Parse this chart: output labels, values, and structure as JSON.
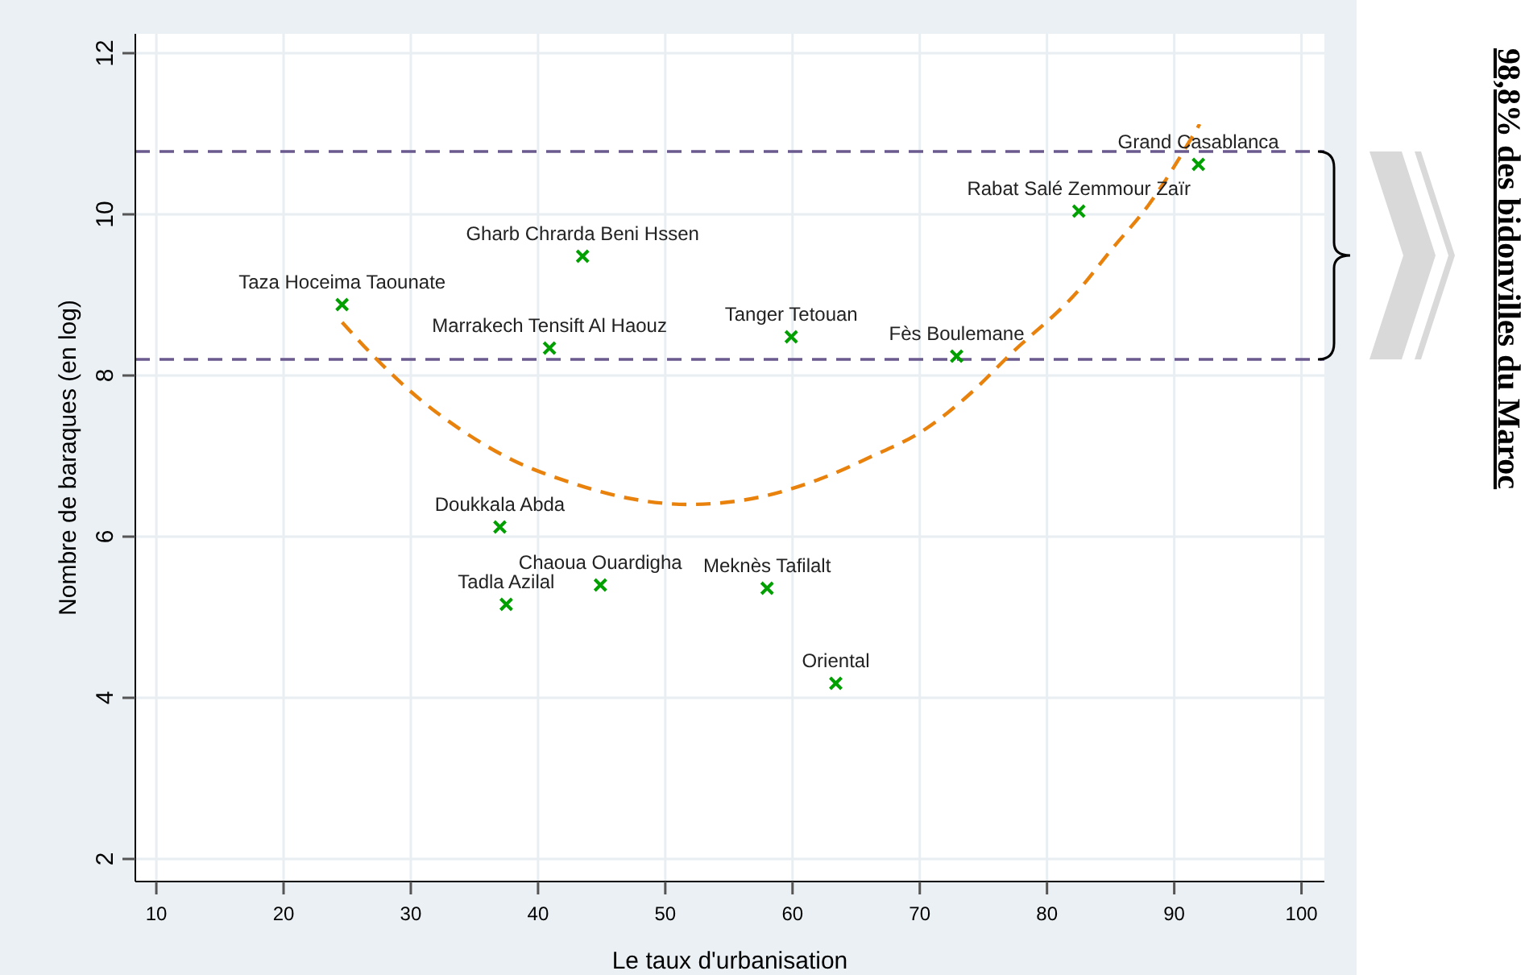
{
  "chart_data": {
    "type": "scatter",
    "xlabel": "Le taux d'urbanisation",
    "ylabel": "Nombre de baraques (en log)",
    "xlim": [
      8.35,
      101.8
    ],
    "ylim": [
      1.72,
      12.24
    ],
    "xticks": [
      10,
      20,
      30,
      40,
      50,
      60,
      70,
      80,
      90,
      100
    ],
    "yticks": [
      2,
      4,
      6,
      8,
      10,
      12
    ],
    "grid": true,
    "series": [
      {
        "marker": "cross",
        "color": "#00a000",
        "x": [
          24.6,
          43.5,
          40.9,
          59.9,
          72.9,
          82.5,
          91.9,
          37.0,
          37.5,
          44.9,
          58.0,
          63.4
        ],
        "values": [
          8.88,
          9.48,
          8.34,
          8.48,
          8.24,
          10.04,
          10.62,
          6.12,
          5.16,
          5.4,
          5.36,
          4.18
        ]
      },
      {
        "type": "line",
        "line_style": "dashed",
        "color": "#e8820c",
        "x": [
          24.6,
          27.2,
          30,
          34,
          38,
          42.4,
          47,
          51.8,
          56,
          61.9,
          66,
          70.3,
          74,
          77.1,
          82.5,
          85,
          88,
          92
        ],
        "values": [
          8.66,
          8.22,
          7.8,
          7.32,
          6.95,
          6.68,
          6.48,
          6.4,
          6.45,
          6.7,
          6.98,
          7.32,
          7.78,
          8.26,
          9.06,
          9.55,
          10.12,
          11.12
        ]
      }
    ],
    "ref_lines": [
      {
        "axis": "y",
        "value": 10.78,
        "color": "#6a5a8e",
        "line_style": "dashed"
      },
      {
        "axis": "y",
        "value": 8.2,
        "color": "#6a5a8e",
        "line_style": "dashed"
      }
    ],
    "annotations": [
      {
        "text": "Taza Hoceima Taounate",
        "x": 24.6,
        "y": 8.88
      },
      {
        "text": "Gharb Chrarda Beni Hssen",
        "x": 43.5,
        "y": 9.48
      },
      {
        "text": "Marrakech Tensift Al Haouz",
        "x": 40.9,
        "y": 8.34
      },
      {
        "text": "Tanger Tetouan",
        "x": 59.9,
        "y": 8.48
      },
      {
        "text": "Fès Boulemane",
        "x": 72.9,
        "y": 8.24
      },
      {
        "text": "Rabat Salé Zemmour Zaïr",
        "x": 82.5,
        "y": 10.04
      },
      {
        "text": "Grand Casablanca",
        "x": 91.9,
        "y": 10.62
      },
      {
        "text": "Doukkala Abda",
        "x": 37.0,
        "y": 6.12
      },
      {
        "text": "Tadla Azilal",
        "x": 37.5,
        "y": 5.16
      },
      {
        "text": "Chaoua Ouardigha",
        "x": 44.9,
        "y": 5.4
      },
      {
        "text": "Meknès Tafilalt",
        "x": 58.0,
        "y": 5.36
      },
      {
        "text": "Oriental",
        "x": 63.4,
        "y": 4.18
      },
      "98,8% des bidonvilles du Maroc"
    ]
  }
}
